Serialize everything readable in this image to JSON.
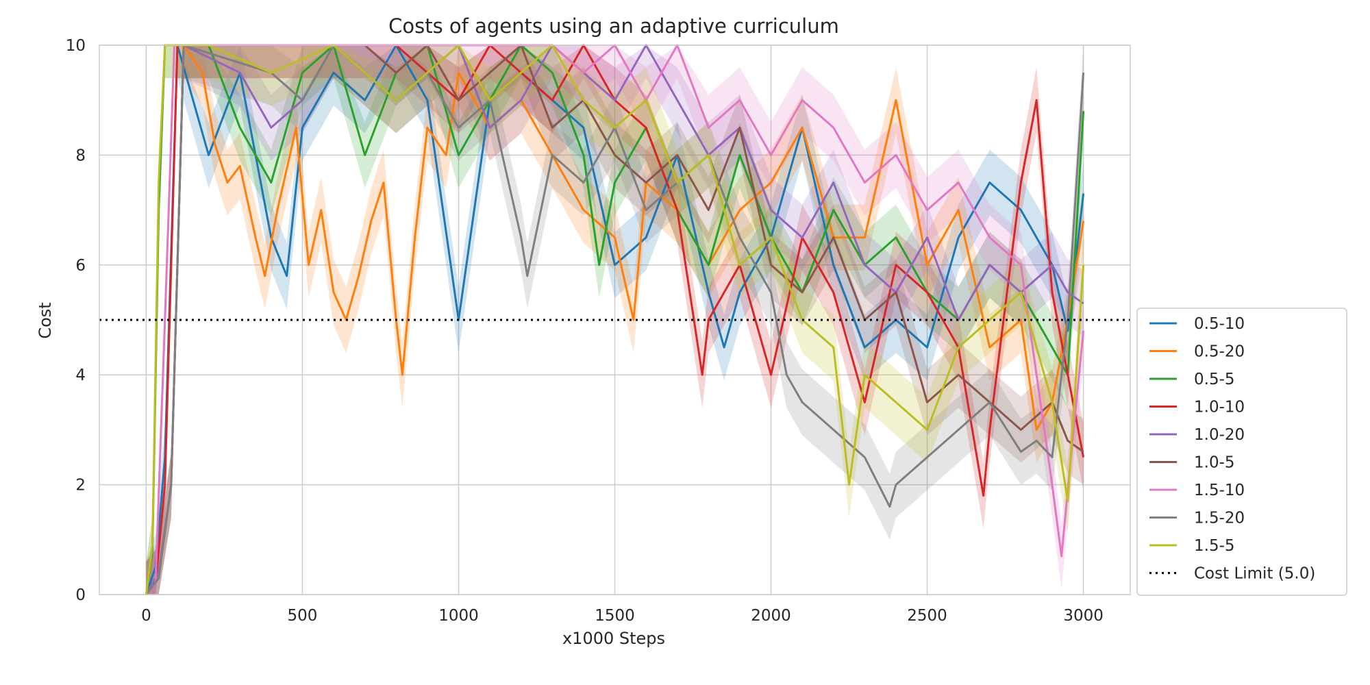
{
  "chart_data": {
    "type": "line",
    "title": "Costs of agents using an adaptive curriculum",
    "xlabel": "x1000 Steps",
    "ylabel": "Cost",
    "xlim": [
      -150,
      3150
    ],
    "ylim": [
      0,
      10
    ],
    "xticks": [
      0,
      500,
      1000,
      1500,
      2000,
      2500,
      3000
    ],
    "yticks": [
      0,
      2,
      4,
      6,
      8,
      10
    ],
    "grid": true,
    "legend_position": "right",
    "shaded_confidence_bands": true,
    "reference_line": {
      "name": "Cost Limit (5.0)",
      "y": 5.0,
      "style": "dotted",
      "color": "#000000"
    },
    "series": [
      {
        "name": "0.5-10",
        "color": "#1f77b4",
        "x": [
          0,
          30,
          60,
          100,
          200,
          300,
          400,
          450,
          500,
          600,
          700,
          800,
          900,
          1000,
          1100,
          1200,
          1300,
          1400,
          1500,
          1600,
          1700,
          1800,
          1850,
          1900,
          2000,
          2100,
          2200,
          2300,
          2400,
          2500,
          2600,
          2700,
          2800,
          2900,
          2950,
          3000
        ],
        "y": [
          0.0,
          0.5,
          2.5,
          10.0,
          8.0,
          9.5,
          6.5,
          5.8,
          8.5,
          9.5,
          9.0,
          10.0,
          9.0,
          5.0,
          9.0,
          9.5,
          9.0,
          8.5,
          6.0,
          6.5,
          8.0,
          5.5,
          4.5,
          5.5,
          6.5,
          8.5,
          6.0,
          4.5,
          5.0,
          4.5,
          6.5,
          7.5,
          7.0,
          6.0,
          4.8,
          7.3
        ]
      },
      {
        "name": "0.5-20",
        "color": "#ff7f0e",
        "x": [
          0,
          40,
          80,
          120,
          180,
          220,
          260,
          300,
          350,
          380,
          420,
          480,
          520,
          560,
          600,
          640,
          680,
          720,
          760,
          800,
          820,
          860,
          900,
          960,
          1000,
          1100,
          1200,
          1300,
          1400,
          1500,
          1560,
          1600,
          1700,
          1800,
          1900,
          2000,
          2100,
          2200,
          2300,
          2400,
          2500,
          2600,
          2700,
          2800,
          2850,
          2900,
          2950,
          3000
        ],
        "y": [
          0.0,
          0.3,
          2.0,
          10.0,
          9.5,
          8.2,
          7.5,
          7.8,
          6.5,
          5.8,
          7.0,
          8.5,
          6.0,
          7.0,
          5.5,
          5.0,
          5.8,
          6.8,
          7.5,
          5.0,
          4.0,
          6.5,
          8.5,
          8.0,
          9.5,
          8.5,
          9.0,
          8.0,
          7.0,
          6.5,
          5.0,
          7.5,
          7.0,
          6.0,
          7.0,
          7.5,
          8.5,
          6.5,
          6.5,
          9.0,
          6.0,
          7.0,
          4.5,
          5.0,
          3.0,
          3.5,
          5.0,
          6.8
        ]
      },
      {
        "name": "0.5-5",
        "color": "#2ca02c",
        "x": [
          0,
          20,
          40,
          60,
          200,
          300,
          400,
          500,
          600,
          700,
          800,
          900,
          1000,
          1100,
          1200,
          1300,
          1400,
          1450,
          1500,
          1600,
          1700,
          1800,
          1900,
          2000,
          2100,
          2200,
          2300,
          2400,
          2500,
          2600,
          2700,
          2800,
          2900,
          2950,
          3000
        ],
        "y": [
          0.0,
          0.8,
          7.0,
          10.0,
          10.0,
          8.5,
          7.5,
          9.5,
          10.0,
          8.0,
          9.5,
          10.0,
          8.0,
          9.0,
          10.0,
          9.5,
          8.0,
          6.0,
          7.5,
          8.5,
          7.0,
          6.0,
          8.0,
          6.5,
          5.5,
          7.0,
          6.0,
          6.5,
          5.5,
          5.0,
          6.0,
          5.5,
          4.5,
          4.0,
          8.8
        ]
      },
      {
        "name": "1.0-10",
        "color": "#d62728",
        "x": [
          0,
          30,
          60,
          100,
          800,
          900,
          1000,
          1100,
          1200,
          1300,
          1400,
          1500,
          1600,
          1700,
          1780,
          1800,
          1900,
          2000,
          2100,
          2200,
          2300,
          2400,
          2500,
          2600,
          2680,
          2700,
          2800,
          2850,
          2900,
          2950,
          3000
        ],
        "y": [
          0.0,
          0.2,
          2.0,
          10.0,
          10.0,
          9.5,
          9.0,
          10.0,
          9.5,
          9.0,
          10.0,
          9.0,
          8.5,
          7.0,
          4.0,
          5.0,
          6.0,
          4.0,
          6.5,
          5.5,
          3.5,
          6.0,
          5.5,
          4.5,
          1.8,
          3.0,
          7.5,
          9.0,
          5.5,
          4.0,
          2.5
        ]
      },
      {
        "name": "1.0-20",
        "color": "#9467bd",
        "x": [
          0,
          40,
          80,
          120,
          300,
          400,
          500,
          600,
          700,
          800,
          900,
          1000,
          1100,
          1200,
          1300,
          1400,
          1500,
          1600,
          1700,
          1800,
          1900,
          2000,
          2100,
          2200,
          2300,
          2400,
          2500,
          2600,
          2700,
          2800,
          2900,
          2950,
          3000
        ],
        "y": [
          0.0,
          0.4,
          2.0,
          10.0,
          9.5,
          8.5,
          9.0,
          10.0,
          9.5,
          9.0,
          9.5,
          10.0,
          8.5,
          9.0,
          10.0,
          9.5,
          9.0,
          10.0,
          9.0,
          8.0,
          8.5,
          7.0,
          6.5,
          7.5,
          6.0,
          5.5,
          6.5,
          5.0,
          6.0,
          5.5,
          6.0,
          5.5,
          5.3
        ]
      },
      {
        "name": "1.0-5",
        "color": "#8c564b",
        "x": [
          0,
          40,
          80,
          120,
          700,
          800,
          900,
          1000,
          1100,
          1200,
          1300,
          1400,
          1500,
          1600,
          1700,
          1800,
          1900,
          2000,
          2100,
          2200,
          2300,
          2400,
          2500,
          2600,
          2700,
          2800,
          2900,
          2950,
          3000
        ],
        "y": [
          0.0,
          0.3,
          2.0,
          10.0,
          10.0,
          9.5,
          10.0,
          9.0,
          9.5,
          10.0,
          8.5,
          9.0,
          8.0,
          7.5,
          8.0,
          7.0,
          8.5,
          6.0,
          5.5,
          6.5,
          5.0,
          5.5,
          3.5,
          4.0,
          3.5,
          3.0,
          3.5,
          2.8,
          2.6
        ]
      },
      {
        "name": "1.5-10",
        "color": "#e377c2",
        "x": [
          0,
          30,
          60,
          90,
          1300,
          1400,
          1500,
          1600,
          1700,
          1800,
          1900,
          2000,
          2100,
          2200,
          2300,
          2400,
          2500,
          2600,
          2700,
          2800,
          2900,
          2930,
          2960,
          3000
        ],
        "y": [
          0.0,
          0.2,
          5.0,
          10.0,
          10.0,
          9.5,
          10.0,
          9.0,
          10.0,
          8.5,
          9.0,
          8.0,
          9.0,
          8.5,
          7.5,
          8.0,
          7.0,
          7.5,
          6.5,
          6.0,
          2.0,
          0.7,
          2.5,
          4.8
        ]
      },
      {
        "name": "1.5-20",
        "color": "#7f7f7f",
        "x": [
          0,
          40,
          80,
          120,
          400,
          500,
          600,
          700,
          800,
          900,
          1000,
          1100,
          1200,
          1220,
          1300,
          1400,
          1500,
          1600,
          1700,
          1800,
          1900,
          2000,
          2050,
          2100,
          2200,
          2300,
          2380,
          2400,
          2500,
          2600,
          2700,
          2800,
          2850,
          2900,
          2950,
          3000
        ],
        "y": [
          0.0,
          0.3,
          2.0,
          10.0,
          9.5,
          9.0,
          10.0,
          9.5,
          9.0,
          9.5,
          8.5,
          9.0,
          6.5,
          5.8,
          8.0,
          7.5,
          8.5,
          7.0,
          7.5,
          8.0,
          6.5,
          5.5,
          4.0,
          3.5,
          3.0,
          2.5,
          1.6,
          2.0,
          2.5,
          3.0,
          3.5,
          2.6,
          2.8,
          2.5,
          5.0,
          9.5
        ]
      },
      {
        "name": "1.5-5",
        "color": "#bcbd22",
        "x": [
          0,
          20,
          40,
          60,
          200,
          400,
          600,
          800,
          900,
          1000,
          1100,
          1200,
          1300,
          1400,
          1500,
          1600,
          1700,
          1800,
          1900,
          2000,
          2100,
          2200,
          2250,
          2300,
          2400,
          2500,
          2600,
          2700,
          2800,
          2900,
          2950,
          3000
        ],
        "y": [
          0.0,
          0.9,
          7.5,
          10.0,
          10.0,
          9.5,
          10.0,
          9.0,
          9.5,
          10.0,
          9.0,
          9.5,
          10.0,
          9.0,
          8.5,
          9.0,
          7.5,
          8.0,
          6.0,
          6.5,
          5.0,
          4.5,
          2.0,
          4.0,
          3.5,
          3.0,
          4.5,
          5.0,
          5.5,
          3.5,
          1.7,
          6.0
        ]
      }
    ]
  }
}
